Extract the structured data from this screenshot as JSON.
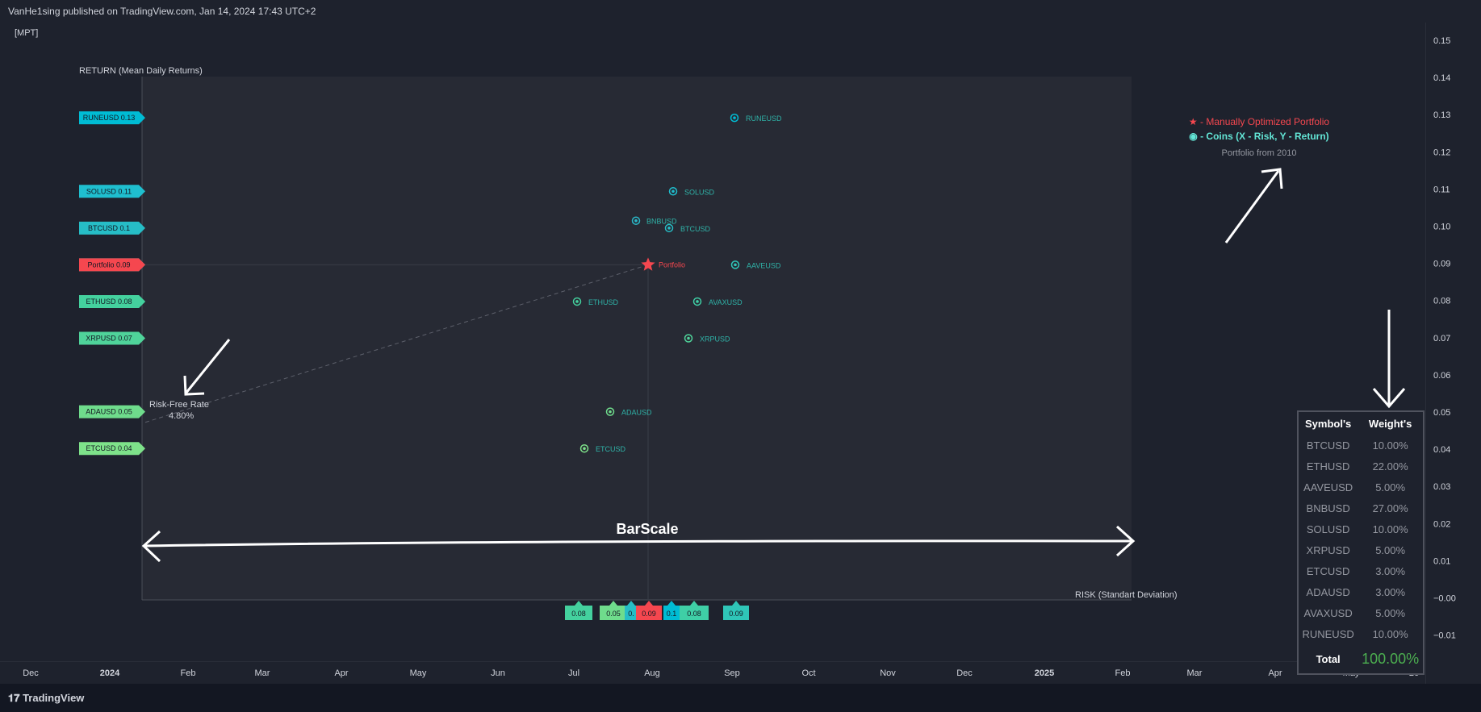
{
  "header": {
    "publisher": "VanHe1sing published on TradingView.com, Jan 14, 2024 17:43 UTC+2",
    "indicator": "[MPT]"
  },
  "footer": {
    "brand": "TradingView"
  },
  "price_axis": [
    "0.15",
    "0.14",
    "0.13",
    "0.12",
    "0.11",
    "0.10",
    "0.09",
    "0.08",
    "0.07",
    "0.06",
    "0.05",
    "0.04",
    "0.03",
    "0.02",
    "0.01",
    "−0.00",
    "−0.01"
  ],
  "time_axis": [
    {
      "label": "Dec",
      "bold": false
    },
    {
      "label": "2024",
      "bold": true
    },
    {
      "label": "Feb",
      "bold": false
    },
    {
      "label": "Mar",
      "bold": false
    },
    {
      "label": "Apr",
      "bold": false
    },
    {
      "label": "May",
      "bold": false
    },
    {
      "label": "Jun",
      "bold": false
    },
    {
      "label": "Jul",
      "bold": false
    },
    {
      "label": "Aug",
      "bold": false
    },
    {
      "label": "Sep",
      "bold": false
    },
    {
      "label": "Oct",
      "bold": false
    },
    {
      "label": "Nov",
      "bold": false
    },
    {
      "label": "Dec",
      "bold": false
    },
    {
      "label": "2025",
      "bold": true
    },
    {
      "label": "Feb",
      "bold": false
    },
    {
      "label": "Mar",
      "bold": false
    },
    {
      "label": "Apr",
      "bold": false
    },
    {
      "label": "May",
      "bold": false
    },
    {
      "label": "26",
      "bold": false
    }
  ],
  "chart_data": {
    "type": "scatter",
    "xlabel": "RISK (Standart Deviation)",
    "ylabel": "RETURN (Mean Daily Returns)",
    "ylim": [
      -0.015,
      0.155
    ],
    "points": [
      {
        "name": "RUNEUSD",
        "risk": 0.09,
        "ret": 0.13,
        "tag": "RUNEUSD 0.13",
        "color": "#00bcd4"
      },
      {
        "name": "SOLUSD",
        "risk": 0.08,
        "ret": 0.11,
        "tag": "SOLUSD 0.11",
        "color": "#1fbfcf"
      },
      {
        "name": "BNBUSD",
        "risk": 0.07,
        "ret": 0.102,
        "tag": "",
        "color": "#2ab8c8"
      },
      {
        "name": "BTCUSD",
        "risk": 0.08,
        "ret": 0.1,
        "tag": "BTCUSD 0.1",
        "color": "#26bdc6"
      },
      {
        "name": "AAVEUSD",
        "risk": 0.09,
        "ret": 0.09,
        "tag": "AAVEUSD 0.09",
        "color": "#2fc6b8"
      },
      {
        "name": "AVAXUSD",
        "risk": 0.08,
        "ret": 0.08,
        "tag": "AVAXUSD 0.08",
        "color": "#3fcfa6"
      },
      {
        "name": "ETHUSD",
        "risk": 0.06,
        "ret": 0.08,
        "tag": "ETHUSD 0.08",
        "color": "#44d19e"
      },
      {
        "name": "XRPUSD",
        "risk": 0.08,
        "ret": 0.07,
        "tag": "XRPUSD 0.07",
        "color": "#4fd39a"
      },
      {
        "name": "ADAUSD",
        "risk": 0.06,
        "ret": 0.05,
        "tag": "ADAUSD 0.05",
        "color": "#6fdc8c"
      },
      {
        "name": "ETCUSD",
        "risk": 0.06,
        "ret": 0.04,
        "tag": "ETCUSD 0.04",
        "color": "#7ee28a"
      }
    ],
    "portfolio": {
      "name": "Portfolio",
      "ret": 0.09,
      "tag": "Portfolio 0.09",
      "color": "#f5474f"
    },
    "risk_free": {
      "label": "Risk-Free Rate",
      "value": "4.80%",
      "ret": 0.048
    },
    "risk_tags": [
      {
        "text": "0.08",
        "color": "#44d19e"
      },
      {
        "text": "0.05",
        "color": "#6fdc8c"
      },
      {
        "text": "0.",
        "color": "#26bdc6"
      },
      {
        "text": "0.09",
        "color": "#f5474f"
      },
      {
        "text": "0.1",
        "color": "#00bcd4"
      },
      {
        "text": "0.08",
        "color": "#3fcfa6"
      },
      {
        "text": "0.09",
        "color": "#2fc6b8"
      }
    ],
    "barscale_label": "BarScale"
  },
  "legend": {
    "portfolio": "★ - Manually Optimized Portfolio",
    "coins": "◉ - Coins (X - Risk, Y - Return)",
    "subtitle": "Portfolio from 2010"
  },
  "weights": {
    "header_symbol": "Symbol's",
    "header_weight": "Weight's",
    "rows": [
      {
        "symbol": "BTCUSD",
        "weight": "10.00%"
      },
      {
        "symbol": "ETHUSD",
        "weight": "22.00%"
      },
      {
        "symbol": "AAVEUSD",
        "weight": "5.00%"
      },
      {
        "symbol": "BNBUSD",
        "weight": "27.00%"
      },
      {
        "symbol": "SOLUSD",
        "weight": "10.00%"
      },
      {
        "symbol": "XRPUSD",
        "weight": "5.00%"
      },
      {
        "symbol": "ETCUSD",
        "weight": "3.00%"
      },
      {
        "symbol": "ADAUSD",
        "weight": "3.00%"
      },
      {
        "symbol": "AVAXUSD",
        "weight": "5.00%"
      },
      {
        "symbol": "RUNEUSD",
        "weight": "10.00%"
      }
    ],
    "total_label": "Total",
    "total_value": "100.00%"
  }
}
